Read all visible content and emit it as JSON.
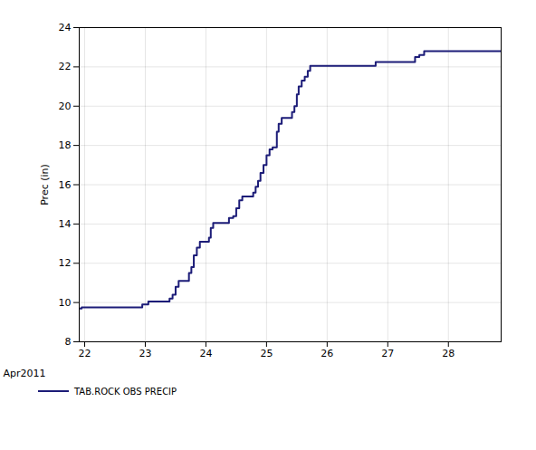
{
  "chart_data": {
    "type": "line",
    "xlabel": "Apr2011",
    "ylabel": "Prec (in)",
    "x": [
      21.91,
      21.95,
      22.9,
      22.95,
      23.05,
      23.4,
      23.45,
      23.5,
      23.55,
      23.72,
      23.76,
      23.8,
      23.85,
      23.9,
      24.05,
      24.08,
      24.12,
      24.38,
      24.45,
      24.5,
      24.55,
      24.6,
      24.78,
      24.82,
      24.86,
      24.9,
      24.95,
      25.0,
      25.05,
      25.1,
      25.17,
      25.2,
      25.25,
      25.42,
      25.46,
      25.5,
      25.53,
      25.58,
      25.63,
      25.68,
      25.72,
      26.8,
      27.45,
      27.52,
      27.6,
      28.87
    ],
    "series": [
      {
        "name": "TAB.ROCK OBS PRECIP",
        "color": "#1c1c78",
        "line_style": "step",
        "values": [
          9.7,
          9.75,
          9.75,
          9.9,
          10.05,
          10.2,
          10.4,
          10.8,
          11.1,
          11.5,
          11.8,
          12.4,
          12.8,
          13.1,
          13.3,
          13.8,
          14.05,
          14.3,
          14.4,
          14.8,
          15.2,
          15.4,
          15.6,
          15.9,
          16.2,
          16.6,
          17.0,
          17.5,
          17.8,
          17.9,
          18.7,
          19.1,
          19.4,
          19.7,
          20.0,
          20.6,
          21.0,
          21.3,
          21.5,
          21.8,
          22.05,
          22.25,
          22.5,
          22.6,
          22.8,
          22.8
        ]
      }
    ],
    "xlim": [
      21.91,
      28.87
    ],
    "xticks": [
      22,
      23,
      24,
      25,
      26,
      27,
      28
    ],
    "ylim": [
      8,
      24
    ],
    "yticks": [
      8,
      10,
      12,
      14,
      16,
      18,
      20,
      22,
      24
    ],
    "grid": true,
    "legend": "bottom"
  }
}
